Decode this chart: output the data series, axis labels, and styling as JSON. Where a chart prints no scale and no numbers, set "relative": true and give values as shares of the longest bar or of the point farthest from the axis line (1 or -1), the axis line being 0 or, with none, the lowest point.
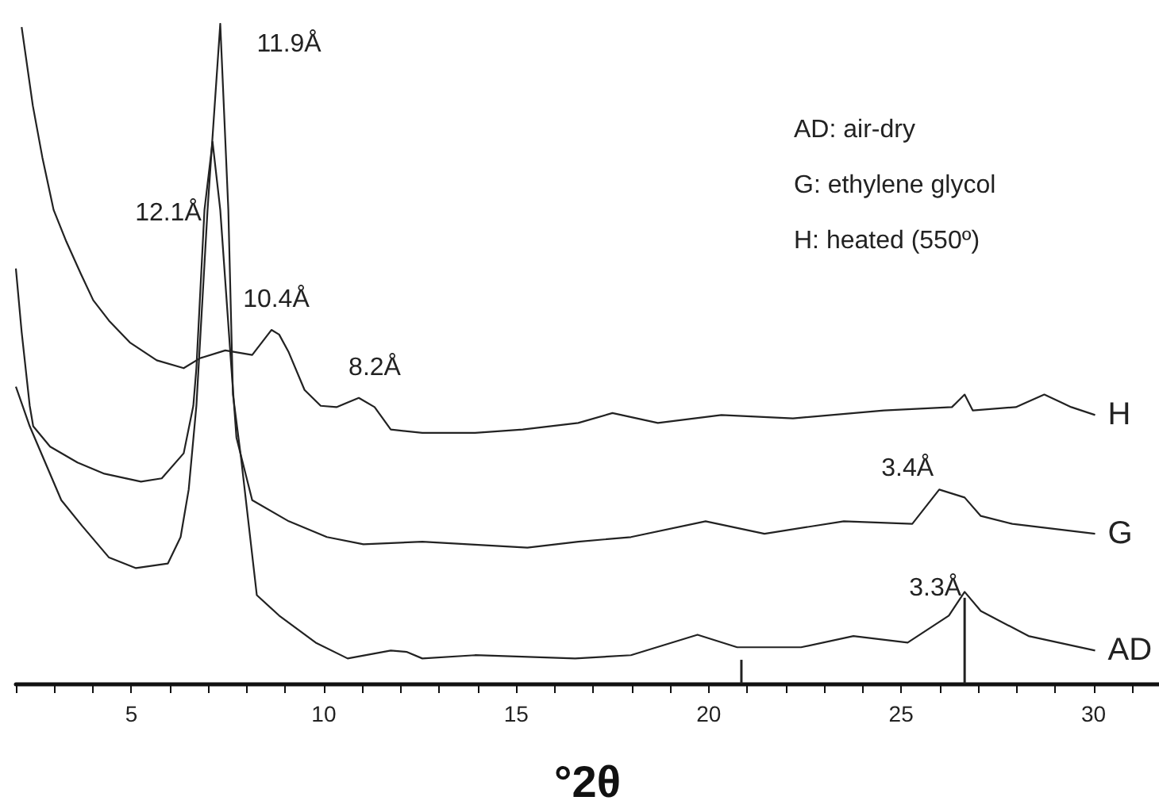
{
  "chart_data": {
    "type": "line",
    "relative": true,
    "xlabel": "°2θ",
    "xlim": [
      2,
      31.7
    ],
    "xticks": [
      {
        "value": 2,
        "label": null
      },
      {
        "value": 3,
        "label": null
      },
      {
        "value": 4,
        "label": null
      },
      5,
      {
        "value": 6,
        "label": null
      },
      {
        "value": 7,
        "label": null
      },
      {
        "value": 8,
        "label": null
      },
      {
        "value": 9,
        "label": null
      },
      10,
      {
        "value": 11,
        "label": null
      },
      {
        "value": 12,
        "label": null
      },
      {
        "value": 13,
        "label": null
      },
      {
        "value": 14,
        "label": null
      },
      15,
      {
        "value": 16,
        "label": null
      },
      {
        "value": 17,
        "label": null
      },
      {
        "value": 18,
        "label": null
      },
      {
        "value": 19,
        "label": null
      },
      20,
      {
        "value": 21,
        "label": null
      },
      {
        "value": 22,
        "label": null
      },
      {
        "value": 23,
        "label": null
      },
      {
        "value": 24,
        "label": null
      },
      25,
      {
        "value": 26,
        "label": null
      },
      {
        "value": 27,
        "label": null
      },
      {
        "value": 28,
        "label": null
      },
      {
        "value": 29,
        "label": null
      },
      30,
      {
        "value": 31,
        "label": null
      }
    ],
    "tick_labels": "x",
    "legend": false,
    "series": [
      {
        "name": "H",
        "color": "#222222",
        "x": [
          2.15,
          2.44,
          2.69,
          2.98,
          3.31,
          3.68,
          4.01,
          4.42,
          4.96,
          5.66,
          6.36,
          6.78,
          7.44,
          8.14,
          8.64,
          8.84,
          9.09,
          9.5,
          9.92,
          10.33,
          10.91,
          11.32,
          11.74,
          12.56,
          13.93,
          15.17,
          16.61,
          17.5,
          18.68,
          20.33,
          22.19,
          24.55,
          26.32,
          26.65,
          26.86,
          27.98,
          28.72,
          29.42,
          30.04
        ],
        "values": [
          0.995,
          0.876,
          0.797,
          0.718,
          0.67,
          0.622,
          0.581,
          0.55,
          0.517,
          0.49,
          0.478,
          0.493,
          0.505,
          0.498,
          0.536,
          0.529,
          0.502,
          0.445,
          0.421,
          0.419,
          0.433,
          0.419,
          0.385,
          0.38,
          0.38,
          0.385,
          0.395,
          0.41,
          0.395,
          0.407,
          0.402,
          0.414,
          0.419,
          0.438,
          0.414,
          0.419,
          0.438,
          0.419,
          0.407
        ]
      },
      {
        "name": "G",
        "color": "#222222",
        "x": [
          2.0,
          2.15,
          2.36,
          2.45,
          2.89,
          3.6,
          4.3,
          5.25,
          5.79,
          6.36,
          6.61,
          6.69,
          6.9,
          7.11,
          7.31,
          7.6,
          7.73,
          8.14,
          9.09,
          10.08,
          11.03,
          12.56,
          15.29,
          16.61,
          17.98,
          19.92,
          21.45,
          23.51,
          25.29,
          25.99,
          26.65,
          27.07,
          27.89,
          30.04
        ],
        "values": [
          0.629,
          0.533,
          0.421,
          0.39,
          0.359,
          0.335,
          0.318,
          0.306,
          0.311,
          0.349,
          0.421,
          0.478,
          0.718,
          0.821,
          0.718,
          0.478,
          0.373,
          0.278,
          0.246,
          0.222,
          0.211,
          0.215,
          0.206,
          0.215,
          0.222,
          0.246,
          0.227,
          0.246,
          0.242,
          0.294,
          0.282,
          0.254,
          0.242,
          0.227
        ]
      },
      {
        "name": "AD",
        "color": "#222222",
        "x": [
          2.0,
          2.36,
          3.18,
          3.72,
          4.42,
          5.12,
          5.95,
          6.28,
          6.49,
          6.69,
          6.98,
          7.31,
          7.52,
          7.64,
          7.85,
          8.26,
          8.84,
          9.79,
          10.62,
          11.74,
          12.15,
          12.56,
          13.93,
          16.53,
          17.98,
          19.71,
          20.74,
          22.4,
          23.76,
          25.17,
          26.24,
          26.65,
          27.07,
          28.31,
          30.04
        ],
        "values": [
          0.45,
          0.39,
          0.278,
          0.239,
          0.191,
          0.175,
          0.182,
          0.222,
          0.294,
          0.421,
          0.718,
          1.0,
          0.718,
          0.438,
          0.342,
          0.134,
          0.103,
          0.062,
          0.038,
          0.05,
          0.048,
          0.038,
          0.043,
          0.038,
          0.043,
          0.074,
          0.055,
          0.055,
          0.072,
          0.062,
          0.103,
          0.139,
          0.11,
          0.072,
          0.05
        ]
      },
      {
        "type": "bar",
        "color": "#222222",
        "x": [
          20.85,
          26.65
        ],
        "values": [
          0.036,
          0.13
        ]
      }
    ],
    "annotations": [
      {
        "text": "11.9Å",
        "x": 7.31,
        "y": 1.0
      },
      {
        "text": "12.1Å",
        "x": 7.11,
        "y": 0.821
      },
      {
        "text": "10.4Å",
        "x": 8.64,
        "y": 0.536
      },
      {
        "text": "8.2Å",
        "x": 10.91,
        "y": 0.433
      },
      {
        "text": "3.4Å",
        "x": 25.99,
        "y": 0.294
      },
      {
        "text": "3.3Å",
        "x": 26.65,
        "y": 0.139
      },
      "AD: air-dry",
      "G: ethylene glycol",
      "H: heated (550º)"
    ]
  }
}
